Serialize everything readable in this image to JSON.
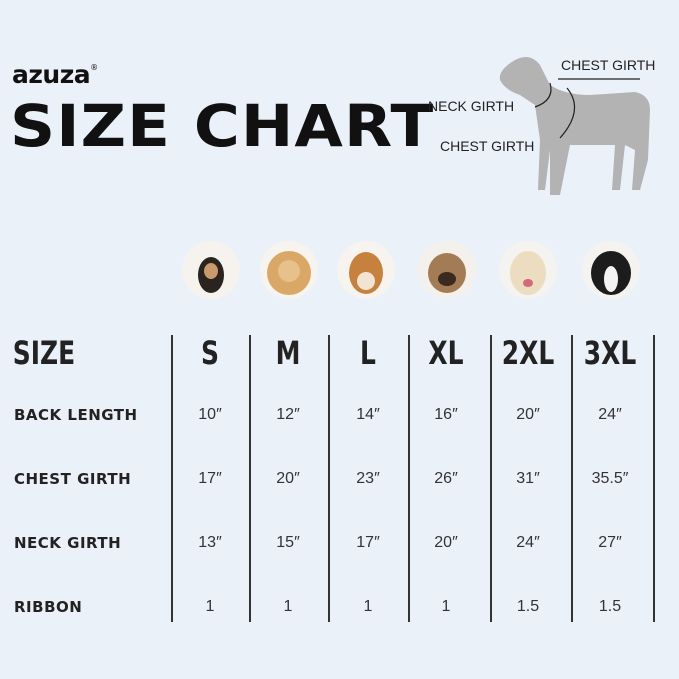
{
  "brand": {
    "name": "azuza",
    "mark": "®",
    "accent": "#e0212b"
  },
  "title": "SIZE CHART",
  "diagram": {
    "labels": [
      "CHEST GIRTH",
      "NECK GIRTH",
      "CHEST GIRTH"
    ]
  },
  "dogs": [
    "chihuahua",
    "pomeranian",
    "shiba-inu",
    "french-bulldog",
    "labrador",
    "border-collie"
  ],
  "table": {
    "header": "SIZE",
    "sizes": [
      "S",
      "M",
      "L",
      "XL",
      "2XL",
      "3XL"
    ],
    "rows": [
      {
        "label": "BACK LENGTH",
        "values": [
          "10″",
          "12″",
          "14″",
          "16″",
          "20″",
          "24″"
        ]
      },
      {
        "label": "CHEST GIRTH",
        "values": [
          "17″",
          "20″",
          "23″",
          "26″",
          "31″",
          "35.5″"
        ]
      },
      {
        "label": "NECK GIRTH",
        "values": [
          "13″",
          "15″",
          "17″",
          "20″",
          "24″",
          "27″"
        ]
      },
      {
        "label": "RIBBON",
        "values": [
          "1",
          "1",
          "1",
          "1",
          "1.5",
          "1.5"
        ]
      }
    ]
  }
}
